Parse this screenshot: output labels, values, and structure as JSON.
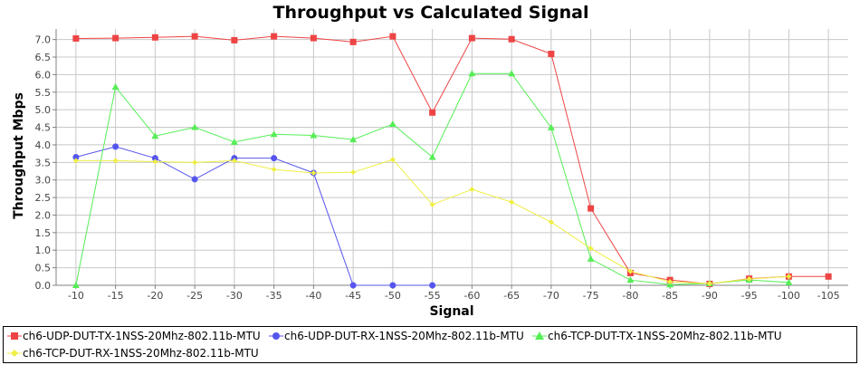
{
  "chart_data": {
    "type": "line",
    "title": "Throughput vs Calculated Signal",
    "xlabel": "Signal",
    "ylabel": "Throughput Mbps",
    "categories": [
      "-10",
      "-15",
      "-20",
      "-25",
      "-30",
      "-35",
      "-40",
      "-45",
      "-50",
      "-55",
      "-60",
      "-65",
      "-70",
      "-75",
      "-80",
      "-85",
      "-90",
      "-95",
      "-100",
      "-105"
    ],
    "ylim": [
      0,
      7.3
    ],
    "yticks": [
      "0.0",
      "0.5",
      "1.0",
      "1.5",
      "2.0",
      "2.5",
      "3.0",
      "3.5",
      "4.0",
      "4.5",
      "5.0",
      "5.5",
      "6.0",
      "6.5",
      "7.0"
    ],
    "grid": true,
    "legend_position": "bottom",
    "series": [
      {
        "name": "ch6-UDP-DUT-TX-1NSS-20Mhz-802.11b-MTU",
        "color": "#ee4444",
        "marker": "square",
        "values": [
          7.03,
          7.04,
          7.06,
          7.09,
          6.98,
          7.09,
          7.04,
          6.93,
          7.09,
          4.92,
          7.04,
          7.01,
          6.59,
          2.19,
          0.35,
          0.15,
          0.04,
          0.19,
          0.25,
          0.25
        ]
      },
      {
        "name": "ch6-UDP-DUT-RX-1NSS-20Mhz-802.11b-MTU",
        "color": "#5555ee",
        "marker": "circle",
        "values": [
          3.65,
          3.95,
          3.62,
          3.02,
          3.62,
          3.62,
          3.2,
          0.0,
          0.0,
          0.0,
          null,
          null,
          null,
          null,
          null,
          null,
          null,
          null,
          null,
          null
        ]
      },
      {
        "name": "ch6-TCP-DUT-TX-1NSS-20Mhz-802.11b-MTU",
        "color": "#55ee55",
        "marker": "triangle",
        "values": [
          0.0,
          5.65,
          4.25,
          4.5,
          4.08,
          4.3,
          4.27,
          4.15,
          4.59,
          3.65,
          6.03,
          6.03,
          4.49,
          0.75,
          0.15,
          0.02,
          0.05,
          0.15,
          0.08,
          null
        ]
      },
      {
        "name": "ch6-TCP-DUT-RX-1NSS-20Mhz-802.11b-MTU",
        "color": "#eeee44",
        "marker": "diamond",
        "values": [
          3.55,
          3.55,
          3.52,
          3.5,
          3.55,
          3.3,
          3.2,
          3.22,
          3.58,
          2.3,
          2.73,
          2.37,
          1.8,
          1.05,
          0.4,
          0.1,
          0.05,
          0.18,
          0.25,
          null
        ]
      }
    ]
  }
}
